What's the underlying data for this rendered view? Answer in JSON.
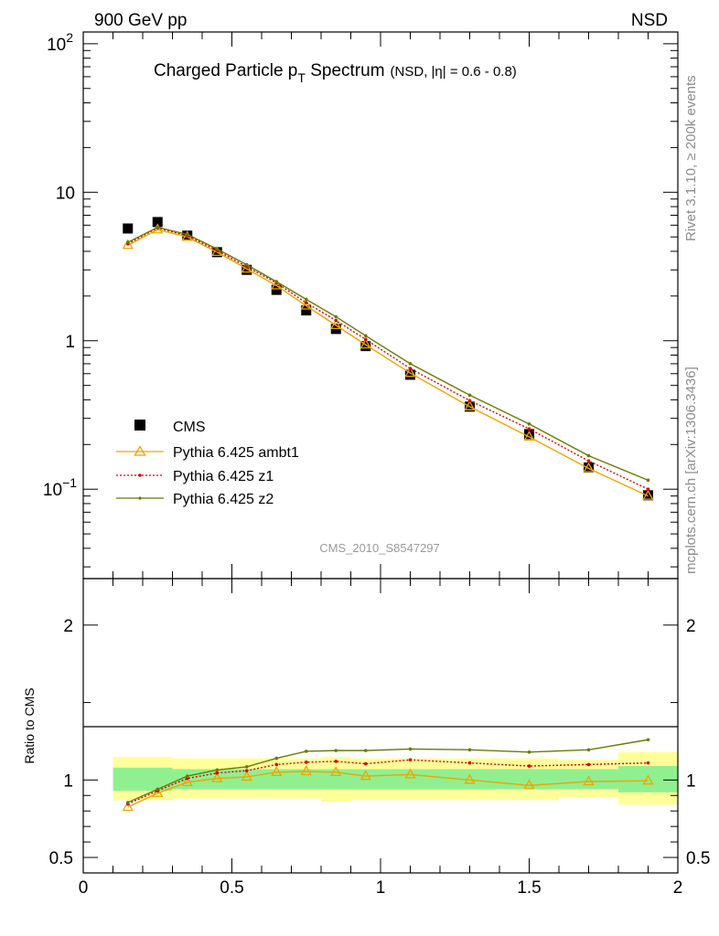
{
  "header": {
    "left": "900 GeV pp",
    "right": "NSD"
  },
  "title": {
    "main": "Charged Particle p",
    "sub": "T",
    "main_after": " Spectrum",
    "small": "(NSD, |η| = 0.6 - 0.8)"
  },
  "side_labels": {
    "rivet": "Rivet 3.1.10, ≥ 200k events",
    "mcplots": "mcplots.cern.ch [arXiv:1306.3436]"
  },
  "analysis_id": "CMS_2010_S8547297",
  "legend": [
    "CMS",
    "Pythia 6.425 ambt1",
    "Pythia 6.425 z1",
    "Pythia 6.425 z2"
  ],
  "colors": {
    "data": "#000000",
    "ambt1": "#f0a400",
    "z1": "#dd0000",
    "z2": "#6b7a00",
    "band_inner": "#90f090",
    "band_outer": "#ffff99"
  },
  "chart_data": [
    {
      "type": "line",
      "panel": "main",
      "yscale": "log",
      "xlim": [
        0,
        2
      ],
      "ylim": [
        0.025,
        120
      ],
      "y_ticks": [
        {
          "v": 0.1,
          "base": "10",
          "exp": "−1"
        },
        {
          "v": 1,
          "base": "1",
          "exp": ""
        },
        {
          "v": 10,
          "base": "10",
          "exp": ""
        },
        {
          "v": 100,
          "base": "10",
          "exp": "2"
        }
      ],
      "x": [
        0.15,
        0.25,
        0.35,
        0.45,
        0.55,
        0.65,
        0.75,
        0.85,
        0.95,
        1.1,
        1.3,
        1.5,
        1.7,
        1.9
      ],
      "series": [
        {
          "name": "CMS",
          "key": "data",
          "values": [
            5.7,
            6.3,
            5.1,
            3.95,
            3.0,
            2.2,
            1.6,
            1.2,
            0.92,
            0.59,
            0.36,
            0.235,
            0.14,
            0.091
          ]
        },
        {
          "name": "Pythia 6.425 ambt1",
          "key": "ambt1",
          "values": [
            4.4,
            5.6,
            5.0,
            3.95,
            3.05,
            2.35,
            1.72,
            1.27,
            0.94,
            0.605,
            0.36,
            0.225,
            0.138,
            0.09
          ]
        },
        {
          "name": "Pythia 6.425 z1",
          "key": "z1",
          "values": [
            4.5,
            5.75,
            5.1,
            4.05,
            3.15,
            2.45,
            1.8,
            1.37,
            1.02,
            0.65,
            0.395,
            0.255,
            0.155,
            0.1
          ]
        },
        {
          "name": "Pythia 6.425 z2",
          "key": "z2",
          "values": [
            4.6,
            5.8,
            5.2,
            4.15,
            3.25,
            2.5,
            1.9,
            1.45,
            1.08,
            0.7,
            0.43,
            0.275,
            0.168,
            0.115
          ]
        }
      ]
    },
    {
      "type": "line",
      "panel": "ratio",
      "ylabel": "Ratio to CMS",
      "xlim": [
        0,
        2
      ],
      "ylim": [
        0.4,
        2.3
      ],
      "y_ticks": [
        0.5,
        1,
        2
      ],
      "y_tick_labels": [
        "0.5",
        "1",
        "2"
      ],
      "x_ticks": [
        0,
        0.5,
        1,
        1.5,
        2
      ],
      "x_tick_labels": [
        "0",
        "0.5",
        "1",
        "1.5",
        "2"
      ],
      "x": [
        0.15,
        0.25,
        0.35,
        0.45,
        0.55,
        0.65,
        0.75,
        0.85,
        0.95,
        1.1,
        1.3,
        1.5,
        1.7,
        1.9
      ],
      "bands": {
        "edges": [
          0.1,
          0.2,
          0.3,
          0.4,
          0.5,
          0.6,
          0.7,
          0.8,
          0.9,
          1.0,
          1.2,
          1.4,
          1.6,
          1.8,
          2.0
        ],
        "inner": [
          [
            0.93,
            1.08
          ],
          [
            0.93,
            1.08
          ],
          [
            0.94,
            1.07
          ],
          [
            0.94,
            1.07
          ],
          [
            0.94,
            1.07
          ],
          [
            0.94,
            1.07
          ],
          [
            0.94,
            1.07
          ],
          [
            0.94,
            1.07
          ],
          [
            0.94,
            1.07
          ],
          [
            0.94,
            1.07
          ],
          [
            0.94,
            1.07
          ],
          [
            0.94,
            1.07
          ],
          [
            0.94,
            1.07
          ],
          [
            0.92,
            1.09
          ]
        ],
        "outer": [
          [
            0.87,
            1.15
          ],
          [
            0.87,
            1.15
          ],
          [
            0.88,
            1.14
          ],
          [
            0.88,
            1.14
          ],
          [
            0.88,
            1.14
          ],
          [
            0.88,
            1.14
          ],
          [
            0.88,
            1.14
          ],
          [
            0.86,
            1.15
          ],
          [
            0.87,
            1.14
          ],
          [
            0.87,
            1.14
          ],
          [
            0.87,
            1.14
          ],
          [
            0.87,
            1.14
          ],
          [
            0.89,
            1.13
          ],
          [
            0.84,
            1.18
          ]
        ]
      },
      "series": [
        {
          "name": "Pythia 6.425 ambt1",
          "key": "ambt1",
          "values": [
            0.825,
            0.915,
            0.985,
            1.01,
            1.02,
            1.05,
            1.055,
            1.05,
            1.025,
            1.035,
            1.0,
            0.965,
            0.99,
            0.995
          ]
        },
        {
          "name": "Pythia 6.425 z1",
          "key": "z1",
          "values": [
            0.845,
            0.93,
            1.01,
            1.045,
            1.06,
            1.1,
            1.115,
            1.12,
            1.105,
            1.13,
            1.11,
            1.09,
            1.1,
            1.11
          ]
        },
        {
          "name": "Pythia 6.425 z2",
          "key": "z2",
          "values": [
            0.855,
            0.94,
            1.025,
            1.065,
            1.085,
            1.14,
            1.185,
            1.19,
            1.19,
            1.2,
            1.195,
            1.18,
            1.195,
            1.26
          ]
        }
      ]
    }
  ]
}
